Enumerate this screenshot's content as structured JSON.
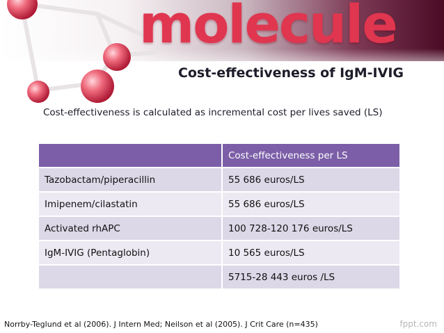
{
  "banner": {
    "logo_word": "molecule"
  },
  "slide": {
    "title": "Cost-effectiveness of IgM-IVIG",
    "subtitle": "Cost-effectiveness is calculated as incremental cost per lives saved (LS)"
  },
  "table": {
    "header": [
      "",
      "Cost-effectiveness per LS"
    ],
    "rows": [
      [
        "Tazobactam/piperacillin",
        "55 686 euros/LS"
      ],
      [
        "Imipenem/cilastatin",
        "55 686 euros/LS"
      ],
      [
        "Activated rhAPC",
        "100 728-120 176 euros/LS"
      ],
      [
        "IgM-IVIG (Pentaglobin)",
        "10 565 euros/LS"
      ],
      [
        "",
        "5715-28 443 euros /LS"
      ]
    ]
  },
  "footer": {
    "citation": "Norrby-Teglund et al (2006). J Intern Med; Neilson et al (2005). J Crit Care (n=435)",
    "brand": "fppt.com"
  },
  "colors": {
    "header_fill": "#7b5ea7",
    "row_fill_dark": "#ddd8e8",
    "row_fill_light": "#ece9f2",
    "logo_text": "#e0364f"
  }
}
